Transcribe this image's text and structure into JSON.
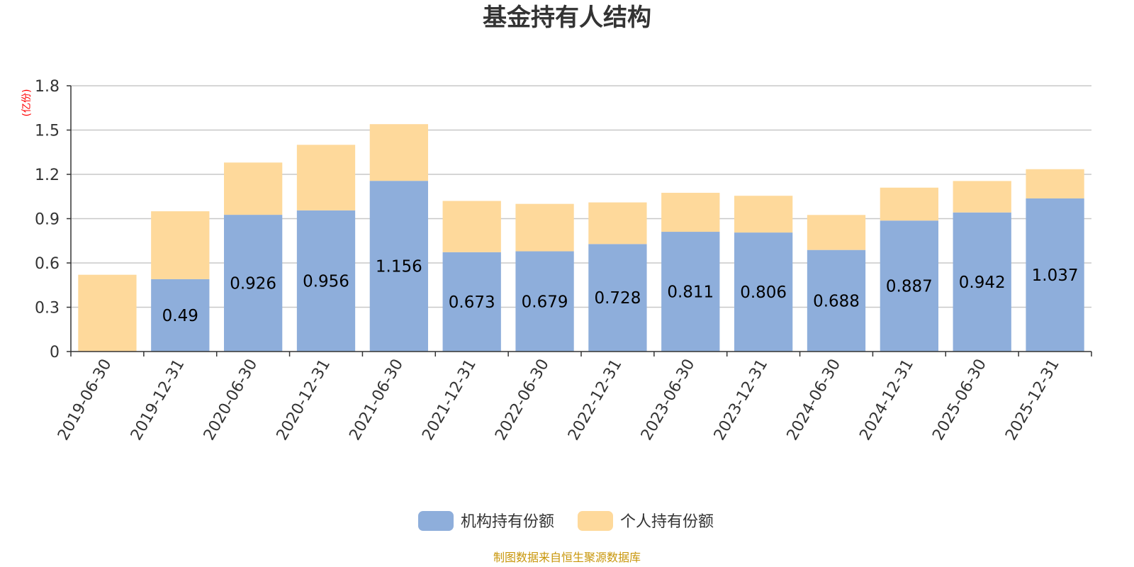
{
  "chart_data": {
    "type": "bar",
    "stacked": true,
    "title": "基金持有人结构",
    "unit": "(亿份)",
    "xlabel": "",
    "ylabel": "",
    "ylim": [
      0,
      1.8
    ],
    "yticks": [
      "0",
      "0.3",
      "0.6",
      "0.9",
      "1.2",
      "1.5",
      "1.8"
    ],
    "grid": true,
    "legend_position": "bottom",
    "categories": [
      "2019-06-30",
      "2019-12-31",
      "2020-06-30",
      "2020-12-31",
      "2021-06-30",
      "2021-12-31",
      "2022-06-30",
      "2022-12-31",
      "2023-06-30",
      "2023-12-31",
      "2024-06-30",
      "2024-12-31",
      "2025-06-30",
      "2025-12-31"
    ],
    "series": [
      {
        "name": "机构持有份额",
        "color": "#8eaedb",
        "values": [
          0,
          0.49,
          0.926,
          0.956,
          1.156,
          0.673,
          0.679,
          0.728,
          0.811,
          0.806,
          0.688,
          0.887,
          0.942,
          1.037
        ],
        "labels": [
          "",
          "0.49",
          "0.926",
          "0.956",
          "1.156",
          "0.673",
          "0.679",
          "0.728",
          "0.811",
          "0.806",
          "0.688",
          "0.887",
          "0.942",
          "1.037"
        ]
      },
      {
        "name": "个人持有份额",
        "color": "#fed99b",
        "values": [
          0.52,
          0.46,
          0.354,
          0.444,
          0.384,
          0.347,
          0.321,
          0.282,
          0.264,
          0.249,
          0.237,
          0.223,
          0.213,
          0.198
        ]
      }
    ],
    "source": "制图数据来自恒生聚源数据库"
  }
}
